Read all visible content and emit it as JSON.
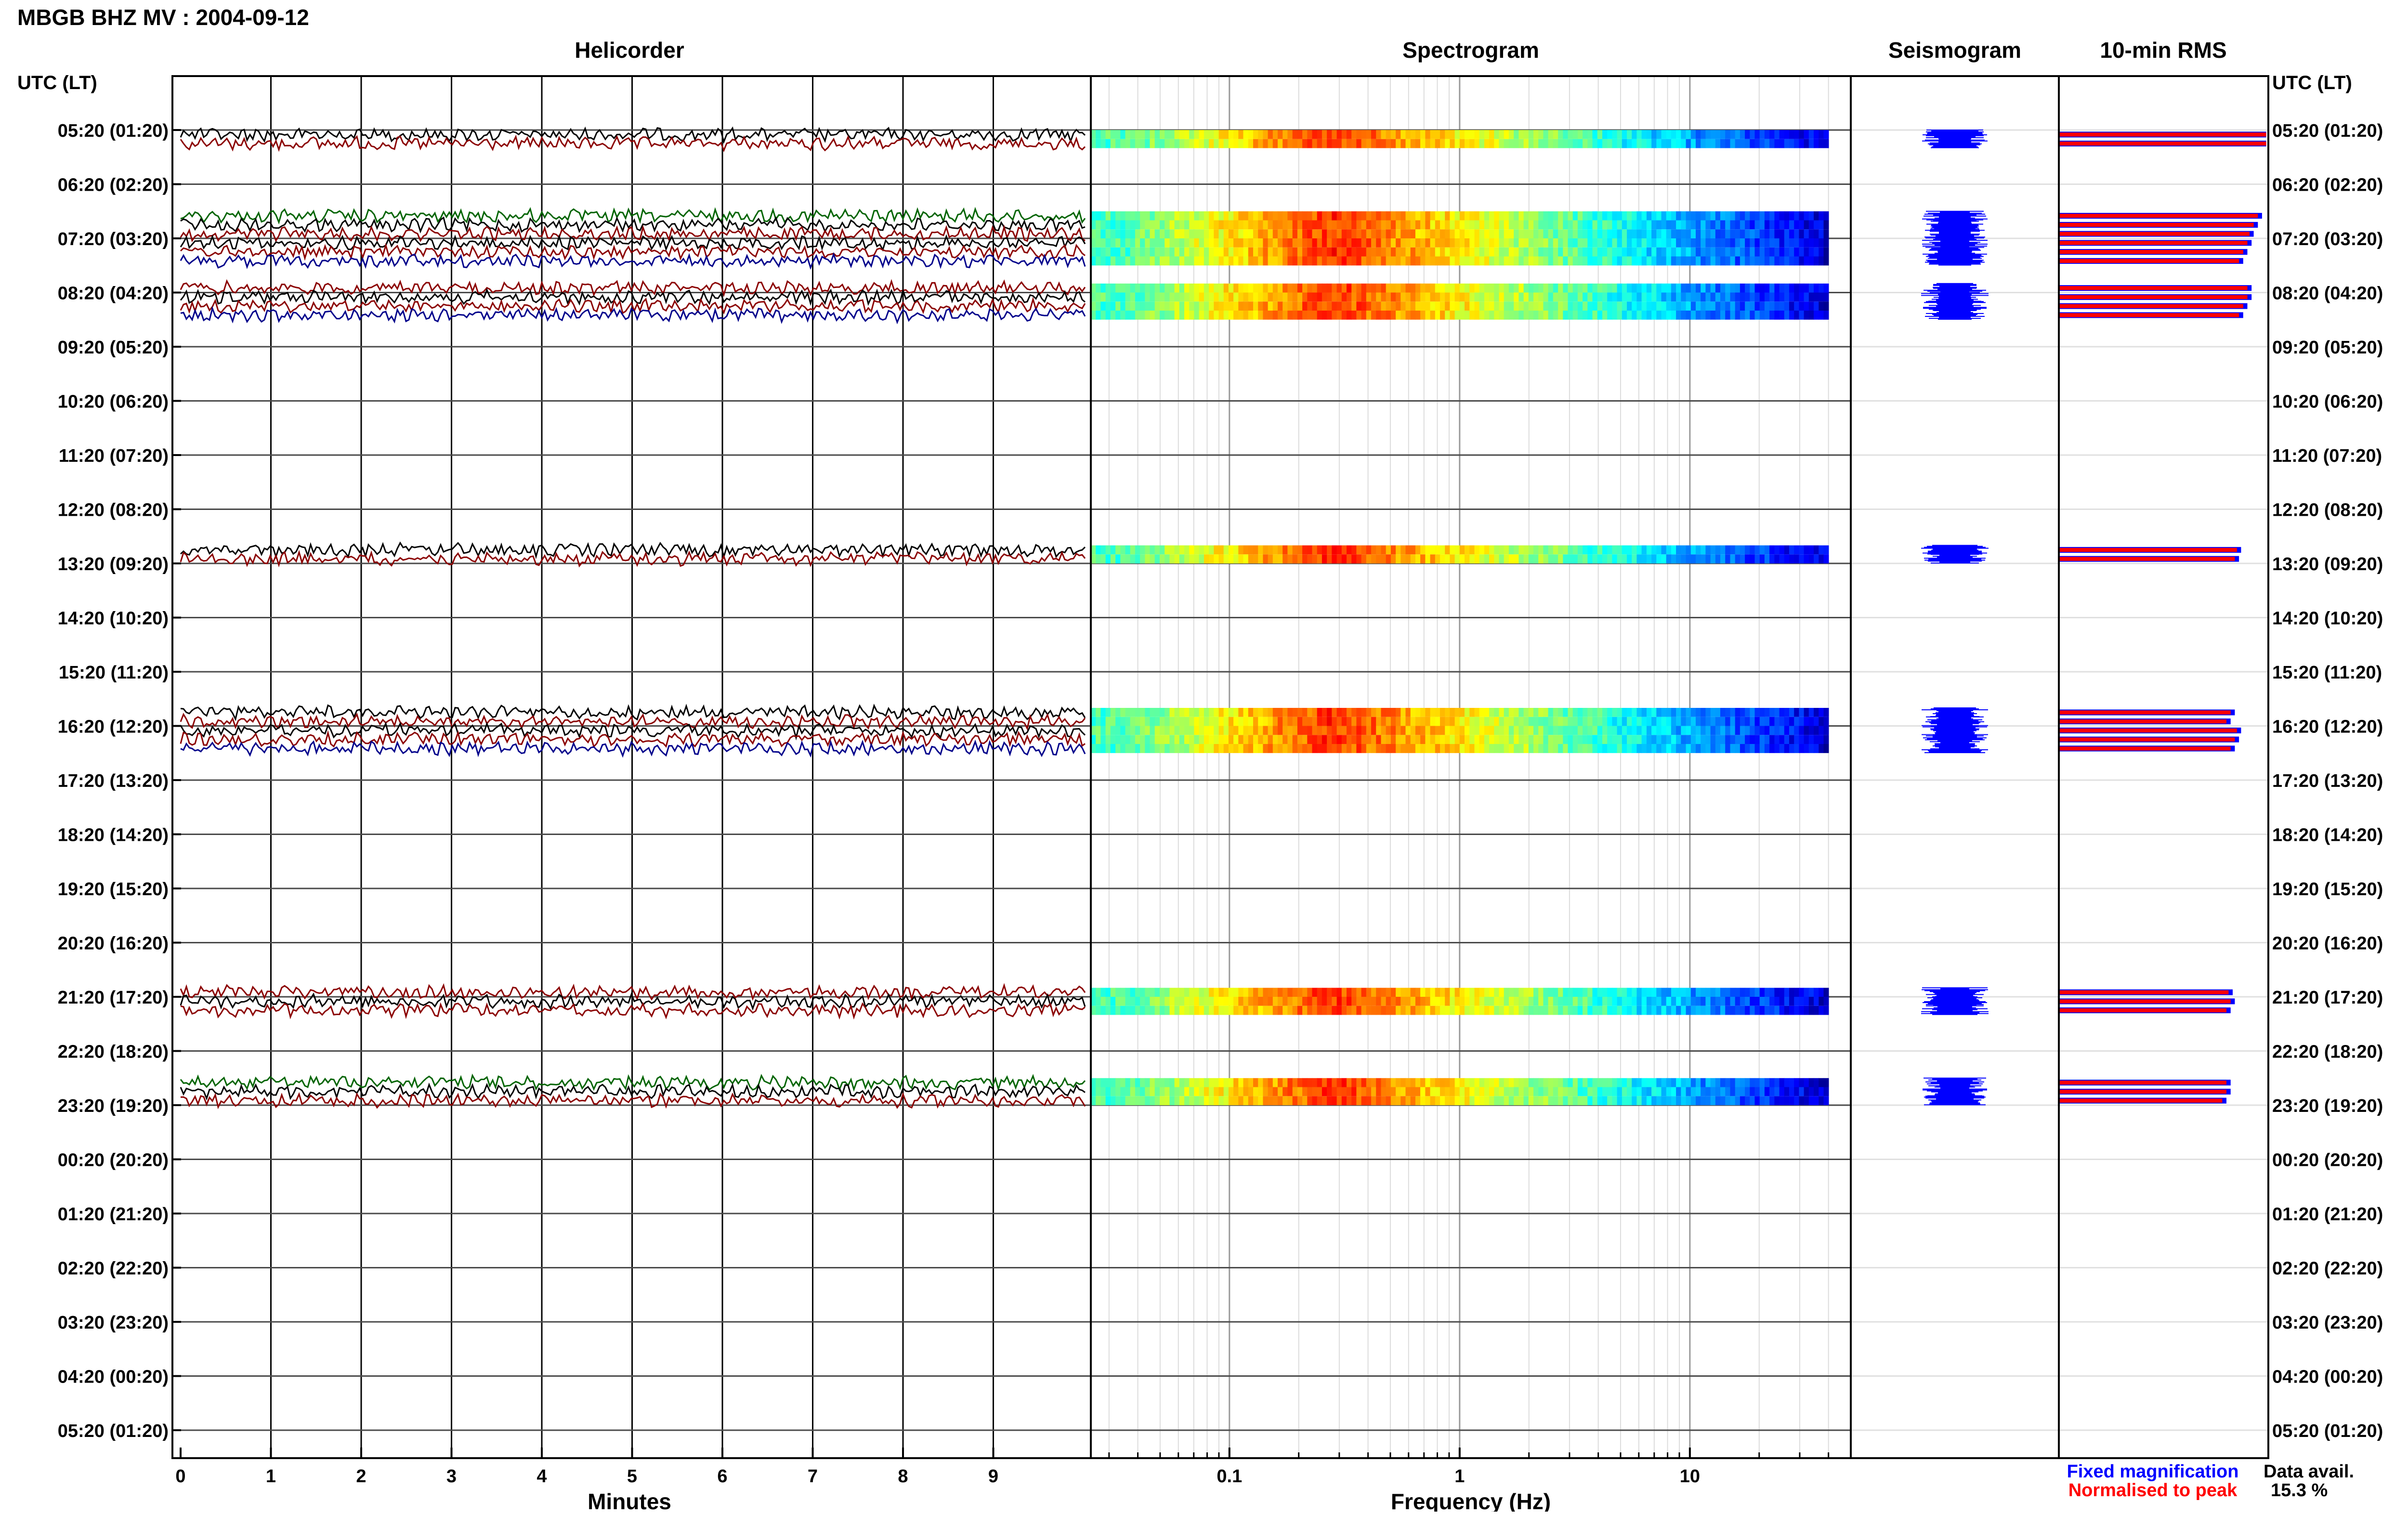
{
  "header": {
    "title": "MBGB BHZ MV : 2004-09-12"
  },
  "panels": {
    "helicorder_title": "Helicorder",
    "spectrogram_title": "Spectrogram",
    "seismogram_title": "Seismogram",
    "rms_title": "10-min RMS",
    "left_axis_label": "UTC (LT)",
    "right_axis_label": "UTC (LT)",
    "helicorder_xlabel": "Minutes",
    "spectrogram_xlabel": "Frequency (Hz)"
  },
  "legend": {
    "fixed": "Fixed magnification",
    "normalised": "Normalised to peak",
    "fixed_color": "#0000ff",
    "normalised_color": "#ff0000"
  },
  "data_avail": {
    "label": "Data avail.",
    "value": "15.3 %"
  },
  "chart_data": {
    "type": "heatmap",
    "title": "MBGB BHZ MV : 2004-09-12",
    "hour_labels": [
      "05:20 (01:20)",
      "06:20 (02:20)",
      "07:20 (03:20)",
      "08:20 (04:20)",
      "09:20 (05:20)",
      "10:20 (06:20)",
      "11:20 (07:20)",
      "12:20 (08:20)",
      "13:20 (09:20)",
      "14:20 (10:20)",
      "15:20 (11:20)",
      "16:20 (12:20)",
      "17:20 (13:20)",
      "18:20 (14:20)",
      "19:20 (15:20)",
      "20:20 (16:20)",
      "21:20 (17:20)",
      "22:20 (18:20)",
      "23:20 (19:20)",
      "00:20 (20:20)",
      "01:20 (21:20)",
      "02:20 (22:20)",
      "03:20 (23:20)",
      "04:20 (00:20)",
      "05:20 (01:20)"
    ],
    "helicorder_x_ticks": [
      "0",
      "1",
      "2",
      "3",
      "4",
      "5",
      "6",
      "7",
      "8",
      "9"
    ],
    "helicorder_xlim": [
      0,
      10
    ],
    "spectrogram_x_ticks": [
      "0.1",
      "1",
      "10"
    ],
    "spectrogram_xlim": [
      0.025,
      50
    ],
    "spectrogram_xscale": "log",
    "spectrogram_fmax": 40,
    "spectrogram_peak_hz": 0.28,
    "trace_colors": [
      "#000000",
      "#8b0000",
      "#00008b",
      "#006400"
    ],
    "data_segments": [
      {
        "hour": 0,
        "slots": [
          0,
          1
        ],
        "rms_fixed": [
          0.99,
          0.99
        ],
        "rms_norm": [
          0.99,
          0.99
        ]
      },
      {
        "hour": 1,
        "slots": [
          3,
          4,
          5
        ],
        "rms_fixed": [
          0.97,
          0.95,
          0.93
        ],
        "rms_norm": [
          0.95,
          0.93,
          0.91
        ]
      },
      {
        "hour": 2,
        "slots": [
          0,
          1,
          2
        ],
        "rms_fixed": [
          0.92,
          0.9,
          0.88
        ],
        "rms_norm": [
          0.9,
          0.88,
          0.86
        ]
      },
      {
        "hour": 2,
        "slots": [
          5
        ],
        "rms_fixed": [
          0.92
        ],
        "rms_norm": [
          0.9
        ]
      },
      {
        "hour": 3,
        "slots": [
          0,
          1,
          2
        ],
        "rms_fixed": [
          0.92,
          0.9,
          0.88
        ],
        "rms_norm": [
          0.9,
          0.88,
          0.86
        ]
      },
      {
        "hour": 7,
        "slots": [
          4,
          5
        ],
        "rms_fixed": [
          0.87,
          0.86
        ],
        "rms_norm": [
          0.85,
          0.84
        ]
      },
      {
        "hour": 10,
        "slots": [
          4,
          5
        ],
        "rms_fixed": [
          0.84,
          0.82
        ],
        "rms_norm": [
          0.82,
          0.8
        ]
      },
      {
        "hour": 11,
        "slots": [
          0,
          1,
          2
        ],
        "rms_fixed": [
          0.87,
          0.86,
          0.84
        ],
        "rms_norm": [
          0.85,
          0.84,
          0.82
        ]
      },
      {
        "hour": 15,
        "slots": [
          5
        ],
        "rms_fixed": [
          0.83
        ],
        "rms_norm": [
          0.81
        ]
      },
      {
        "hour": 16,
        "slots": [
          0,
          1
        ],
        "rms_fixed": [
          0.84,
          0.82
        ],
        "rms_norm": [
          0.82,
          0.8
        ]
      },
      {
        "hour": 17,
        "slots": [
          3,
          4,
          5
        ],
        "rms_fixed": [
          0.82,
          0.82,
          0.8
        ],
        "rms_norm": [
          0.8,
          0.8,
          0.78
        ]
      }
    ]
  }
}
